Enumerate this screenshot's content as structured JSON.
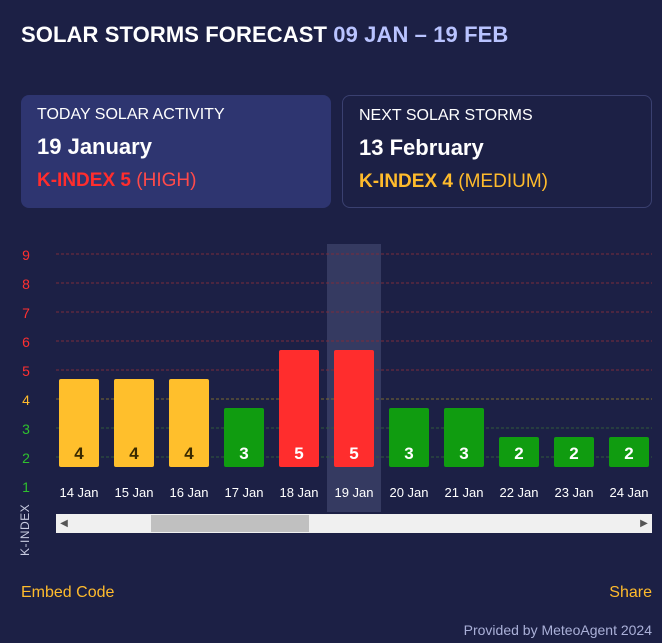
{
  "header": {
    "title": "SOLAR STORMS FORECAST",
    "range": "09 JAN – 19 FEB"
  },
  "today_card": {
    "heading": "TODAY SOLAR ACTIVITY",
    "date": "19 January",
    "k_label": "K-INDEX",
    "k_value": "5",
    "k_level": "(HIGH)"
  },
  "next_card": {
    "heading": "NEXT SOLAR STORMS",
    "date": "13 February",
    "k_label": "K-INDEX",
    "k_value": "4",
    "k_level": "(MEDIUM)"
  },
  "chart_data": {
    "type": "bar",
    "ylabel": "K-INDEX",
    "ylim": [
      1,
      9
    ],
    "y_ticks": [
      1,
      2,
      3,
      4,
      5,
      6,
      7,
      8,
      9
    ],
    "categories": [
      "14 Jan",
      "15 Jan",
      "16 Jan",
      "17 Jan",
      "18 Jan",
      "19 Jan",
      "20 Jan",
      "21 Jan",
      "22 Jan",
      "23 Jan",
      "24 Jan"
    ],
    "values": [
      4,
      4,
      4,
      3,
      5,
      5,
      3,
      3,
      2,
      2,
      2
    ],
    "highlight_category": "19 Jan",
    "colors": {
      "low": "#109c10",
      "medium": "#ffbf2c",
      "high": "#ff2d2d",
      "tick_low": "#2ec02e",
      "tick_medium": "#ffbb2c",
      "tick_high": "#ff3030",
      "label_dark": "#3a2a00"
    }
  },
  "footer": {
    "embed": "Embed Code",
    "share": "Share",
    "credit": "Provided by MeteoAgent 2024"
  }
}
